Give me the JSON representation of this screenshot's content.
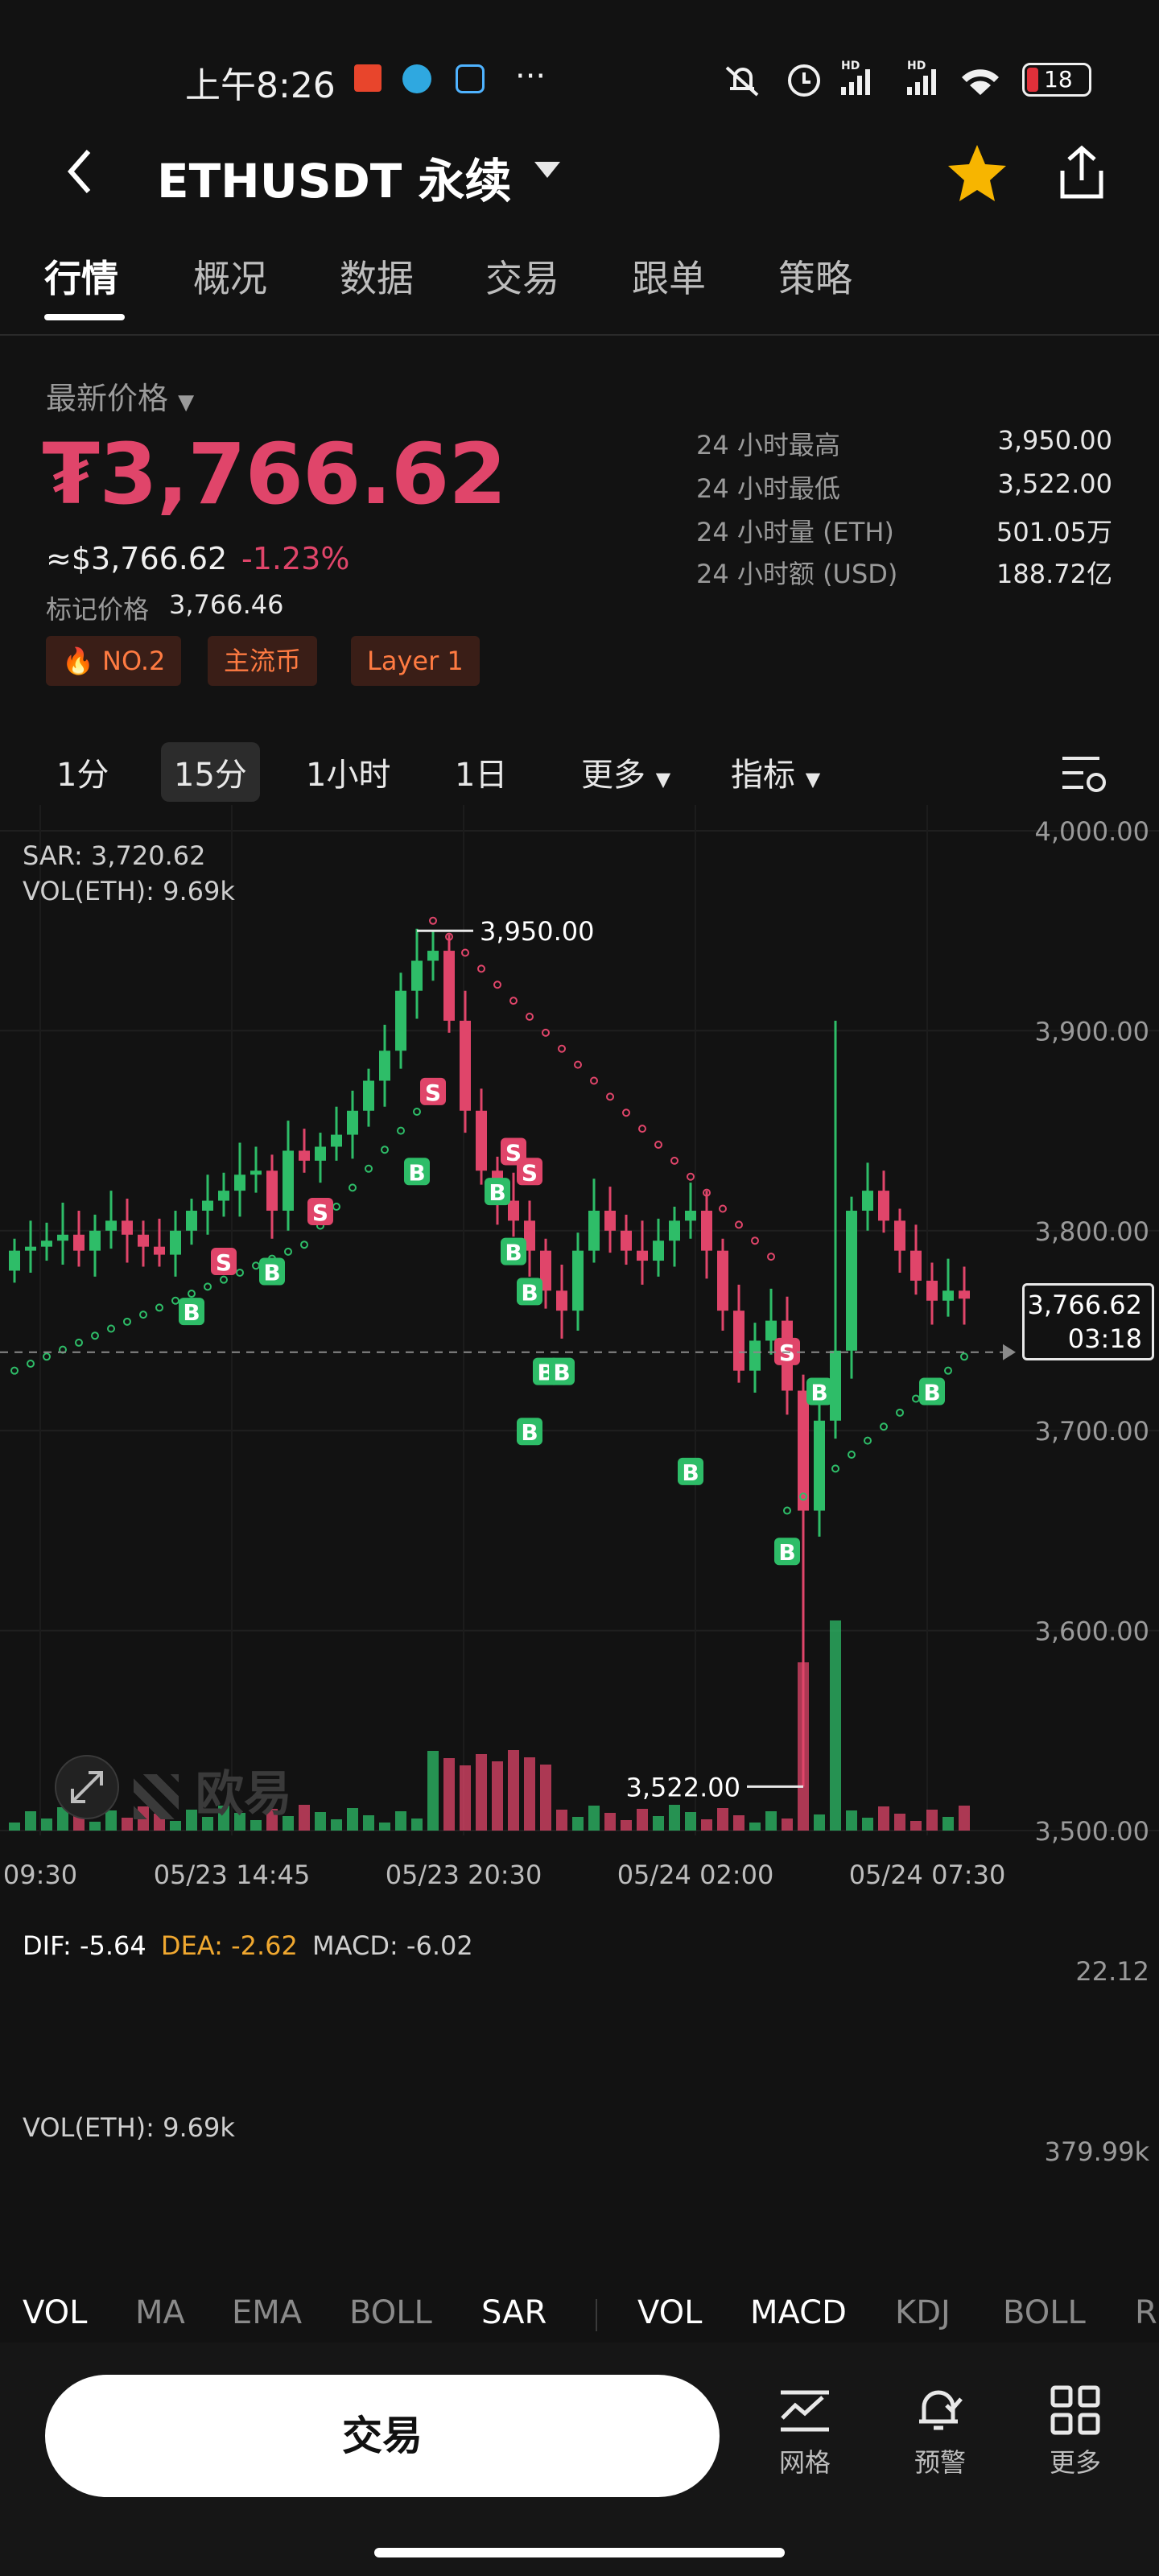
{
  "status_bar": {
    "time": "上午8:26",
    "battery": "18"
  },
  "header": {
    "title": "ETHUSDT 永续"
  },
  "tabs": [
    "行情",
    "概况",
    "数据",
    "交易",
    "跟单",
    "策略"
  ],
  "price": {
    "latest_label": "最新价格",
    "last": "₮3,766.62",
    "usd": "≈$3,766.62",
    "change": "-1.23%",
    "mark_label": "标记价格",
    "mark_value": "3,766.46"
  },
  "badges": [
    "NO.2",
    "主流币",
    "Layer 1"
  ],
  "stats": [
    {
      "label": "24 小时最高",
      "value": "3,950.00"
    },
    {
      "label": "24 小时最低",
      "value": "3,522.00"
    },
    {
      "label": "24 小时量 (ETH)",
      "value": "501.05万"
    },
    {
      "label": "24 小时额 (USD)",
      "value": "188.72亿"
    }
  ],
  "timeframes": [
    "1分",
    "15分",
    "1小时",
    "1日"
  ],
  "timeframe_selected": "15分",
  "more_label": "更多",
  "indicator_label": "指标",
  "chart_info": {
    "sar": "SAR: 3,720.62",
    "vol": "VOL(ETH): 9.69k"
  },
  "macd_info": {
    "dif": "DIF: -5.64",
    "dea": "DEA: -2.62",
    "macd": "MACD: -6.02",
    "scale": "22.12"
  },
  "vol_info": {
    "label": "VOL(ETH): 9.69k",
    "scale": "379.99k"
  },
  "current_price_tag": {
    "price": "3,766.62",
    "countdown": "03:18"
  },
  "high_label": "3,950.00",
  "low_label": "3,522.00",
  "watermark": "欧易",
  "indicators_main": [
    "VOL",
    "MA",
    "EMA",
    "BOLL",
    "SAR"
  ],
  "indicators_sub": [
    "VOL",
    "MACD",
    "KDJ",
    "BOLL",
    "R"
  ],
  "bottom": {
    "trade": "交易",
    "grid": "网格",
    "alert": "预警",
    "more": "更多"
  },
  "colors": {
    "up": "#2ebd68",
    "down": "#e0456a",
    "background": "#121212",
    "star": "#f7b500"
  },
  "chart_data": {
    "type": "candlestick",
    "y_ticks": [
      "4,000.00",
      "3,900.00",
      "3,800.00",
      "3,700.00",
      "3,600.00",
      "3,500.00"
    ],
    "ylim": [
      3500,
      4000
    ],
    "x_ticks": [
      "09:30",
      "05/23 14:45",
      "05/23 20:30",
      "05/24 02:00",
      "05/24 07:30"
    ],
    "high": 3950.0,
    "low": 3522.0,
    "last": 3766.62,
    "markers": [
      {
        "type": "S",
        "i": 13,
        "price": 3785
      },
      {
        "type": "B",
        "i": 11,
        "price": 3760
      },
      {
        "type": "B",
        "i": 16,
        "price": 3780
      },
      {
        "type": "S",
        "i": 19,
        "price": 3810
      },
      {
        "type": "B",
        "i": 25,
        "price": 3830
      },
      {
        "type": "S",
        "i": 26,
        "price": 3870
      },
      {
        "type": "B",
        "i": 30,
        "price": 3820
      },
      {
        "type": "S",
        "i": 31,
        "price": 3840
      },
      {
        "type": "S",
        "i": 32,
        "price": 3830
      },
      {
        "type": "B",
        "i": 31,
        "price": 3790
      },
      {
        "type": "B",
        "i": 32,
        "price": 3770
      },
      {
        "type": "B",
        "i": 33,
        "price": 3730
      },
      {
        "type": "B",
        "i": 34,
        "price": 3730
      },
      {
        "type": "B",
        "i": 32,
        "price": 3700
      },
      {
        "type": "B",
        "i": 42,
        "price": 3680
      },
      {
        "type": "S",
        "i": 48,
        "price": 3740
      },
      {
        "type": "B",
        "i": 48,
        "price": 3640
      },
      {
        "type": "B",
        "i": 50,
        "price": 3720
      },
      {
        "type": "B",
        "i": 57,
        "price": 3720
      }
    ]
  }
}
